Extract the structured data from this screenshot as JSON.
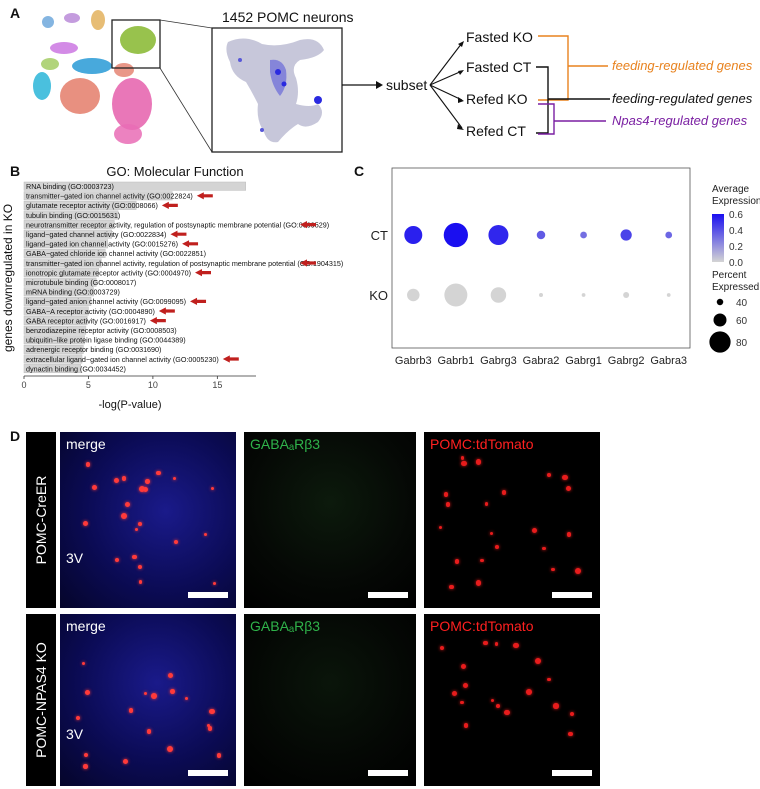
{
  "panels": {
    "a": "A",
    "b": "B",
    "c": "C",
    "d": "D"
  },
  "panel_a": {
    "umap_title": "1452 POMC neurons",
    "subset_label": "subset",
    "groups": [
      "Fasted KO",
      "Fasted CT",
      "Refed KO",
      "Refed CT"
    ],
    "annotations": [
      {
        "text": "feeding-regulated genes",
        "color": "#e8821e"
      },
      {
        "text": "feeding-regulated genes",
        "color": "#111111"
      },
      {
        "text": "Npas4-regulated genes",
        "color": "#7a1fa2"
      }
    ]
  },
  "chart_data": [
    {
      "type": "bar",
      "orientation": "horizontal",
      "title": "GO: Molecular Function",
      "xlabel": "-log(P-value)",
      "ylabel": "genes downregulated in KO",
      "xticks": [
        0,
        5,
        10,
        15
      ],
      "xlim": [
        0,
        18
      ],
      "categories": [
        "RNA binding (GO:0003723)",
        "transmitter−gated ion channel activity (GO:0022824)",
        "glutamate receptor activity (GO:0008066)",
        "tubulin binding (GO:0015631)",
        "neurotransmitter receptor activity, regulation of postsynaptic membrane potential (GO:0099529)",
        "ligand−gated channel activity (GO:0022834)",
        "ligand−gated ion channel activity (GO:0015276)",
        "GABA−gated chloride ion channel activity (GO:0022851)",
        "transmitter−gated ion channel activity, regulation of postsynaptic membrane potential (GO:1904315)",
        "ionotropic glutamate receptor activity (GO:0004970)",
        "microtubule binding (GO:0008017)",
        "mRNA binding (GO:0003729)",
        "ligand−gated anion channel activity (GO:0099095)",
        "GABA−A receptor activity (GO:0004890)",
        "GABA receptor activity (GO:0016917)",
        "benzodiazepine receptor activity (GO:0008503)",
        "ubiquitin−like protein ligase binding (GO:0044389)",
        "adrenergic receptor binding (GO:0031690)",
        "extracellular ligand−gated ion channel activity (GO:0005230)",
        "dynactin binding (GO:0034452)"
      ],
      "values": [
        17.2,
        11.5,
        8.7,
        7.3,
        7.0,
        6.8,
        6.5,
        6.3,
        6.0,
        5.8,
        5.6,
        5.4,
        5.2,
        5.0,
        4.9,
        4.8,
        4.7,
        4.6,
        4.5,
        4.4
      ],
      "highlighted": [
        false,
        true,
        true,
        false,
        true,
        true,
        true,
        false,
        true,
        true,
        false,
        false,
        true,
        true,
        true,
        false,
        false,
        false,
        true,
        false
      ],
      "bar_color": "#d4d4d4",
      "arrow_color": "#c0201e"
    },
    {
      "type": "dot",
      "xlabels": [
        "Gabrb3",
        "Gabrb1",
        "Gabrg3",
        "Gabra2",
        "Gabrg1",
        "Gabrg2",
        "Gabra3"
      ],
      "ylabels": [
        "CT",
        "KO"
      ],
      "expression": [
        [
          0.62,
          0.68,
          0.6,
          0.42,
          0.35,
          0.5,
          0.38
        ],
        [
          0.0,
          0.0,
          0.0,
          0.0,
          0.0,
          0.0,
          0.0
        ]
      ],
      "percent": [
        [
          60,
          85,
          68,
          22,
          15,
          33,
          15
        ],
        [
          38,
          80,
          50,
          4,
          3,
          12,
          3
        ]
      ],
      "color_legend_title": "Average Expression",
      "color_ticks": [
        "0.6",
        "0.4",
        "0.2",
        "0.0"
      ],
      "size_legend_title": "Percent Expressed",
      "size_ticks": [
        "40",
        "60",
        "80"
      ],
      "color_low": "#d4d4d4",
      "color_high": "#1a0ff0"
    }
  ],
  "panel_d": {
    "rows": [
      "POMC-CreER",
      "POMC-NPAS4 KO"
    ],
    "channels": [
      {
        "label": "merge",
        "color": "#ffffff"
      },
      {
        "label": "GABAₐRβ3",
        "color": "#2fb34a"
      },
      {
        "label": "POMC:tdTomato",
        "color": "#ff2020"
      }
    ],
    "ventricle": "3V"
  }
}
